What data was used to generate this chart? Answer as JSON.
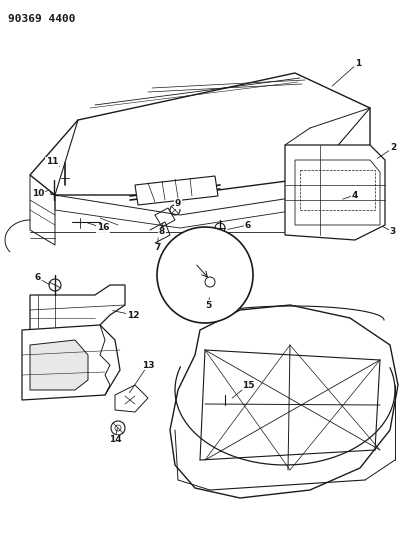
{
  "title": "90369 4400",
  "bg_color": "#ffffff",
  "line_color": "#1a1a1a",
  "figsize": [
    4.07,
    5.33
  ],
  "dpi": 100
}
